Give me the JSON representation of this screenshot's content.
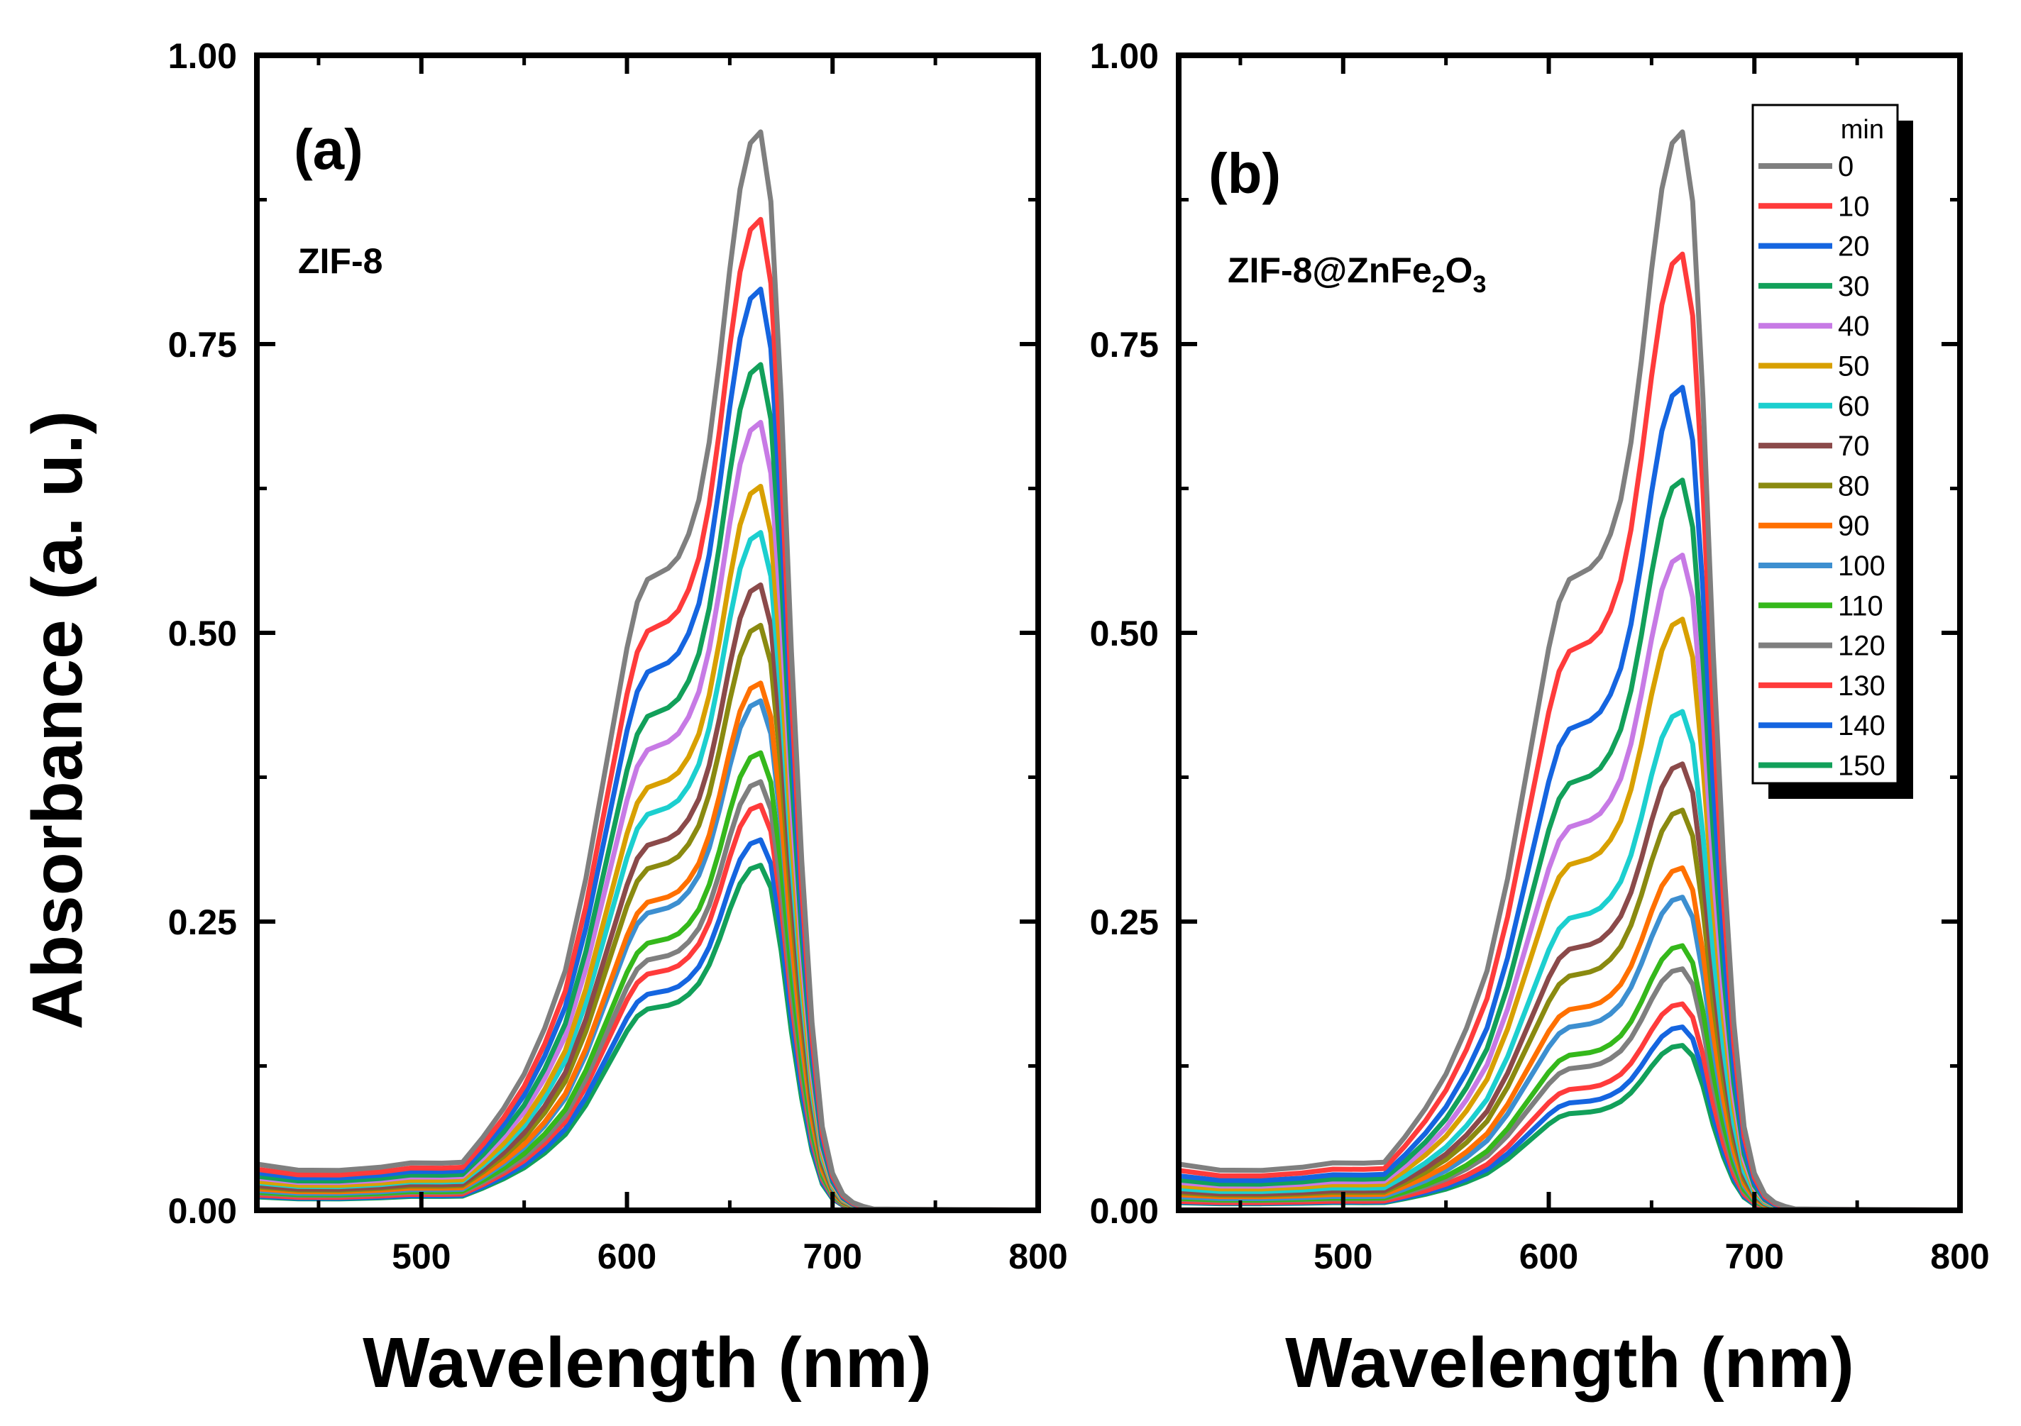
{
  "figure": {
    "ylabel": "Absorbance (a. u.)",
    "xlabel": "Wavelength (nm)"
  },
  "legend": {
    "title": "min",
    "entries": [
      "0",
      "10",
      "20",
      "30",
      "40",
      "50",
      "60",
      "70",
      "80",
      "90",
      "100",
      "110",
      "120",
      "130",
      "140",
      "150"
    ],
    "colors": [
      "#7f7f7f",
      "#ff3b3b",
      "#1565e0",
      "#12a05a",
      "#c77ae5",
      "#d8a000",
      "#1ccfcf",
      "#8b4a4a",
      "#8a8a10",
      "#ff7000",
      "#3d8fd0",
      "#35b81b",
      "#7f7f7f",
      "#ff3b3b",
      "#1565e0",
      "#12a05a"
    ]
  },
  "chart_data": [
    {
      "type": "line",
      "panel": "(a)",
      "sample": "ZIF-8",
      "xlabel": "Wavelength (nm)",
      "ylabel": "Absorbance (a. u.)",
      "xlim": [
        420,
        800
      ],
      "ylim": [
        0,
        1.0
      ],
      "xticks": [
        "500",
        "600",
        "700",
        "800"
      ],
      "yticks": [
        "0.00",
        "0.25",
        "0.50",
        "0.75",
        "1.00"
      ],
      "x": [
        420,
        440,
        460,
        480,
        495,
        510,
        520,
        530,
        540,
        550,
        560,
        570,
        580,
        590,
        600,
        605,
        610,
        615,
        620,
        625,
        630,
        635,
        640,
        645,
        650,
        655,
        660,
        665,
        670,
        675,
        680,
        685,
        690,
        695,
        700,
        705,
        710,
        715,
        720,
        740,
        760,
        780,
        800
      ],
      "series_shape": [
        0.03,
        0.025,
        0.025,
        0.028,
        0.032,
        0.032,
        0.033,
        0.055,
        0.08,
        0.11,
        0.15,
        0.2,
        0.28,
        0.38,
        0.48,
        0.52,
        0.54,
        0.545,
        0.55,
        0.56,
        0.58,
        0.61,
        0.66,
        0.73,
        0.81,
        0.88,
        0.92,
        0.93,
        0.87,
        0.7,
        0.48,
        0.3,
        0.16,
        0.07,
        0.03,
        0.012,
        0.005,
        0.002,
        0.0,
        0.0,
        0.0,
        0.0,
        0.0
      ],
      "shape_note": "each series = its peak value times the 0-min shape (which peaks at 0.93 near 665 nm), plus a small baseline",
      "series": [
        {
          "name": "0",
          "peak": 0.93,
          "baseline": 0.01
        },
        {
          "name": "10",
          "peak": 0.855,
          "baseline": 0.008
        },
        {
          "name": "20",
          "peak": 0.795,
          "baseline": 0.007
        },
        {
          "name": "30",
          "peak": 0.73,
          "baseline": 0.006
        },
        {
          "name": "40",
          "peak": 0.68,
          "baseline": 0.006
        },
        {
          "name": "50",
          "peak": 0.625,
          "baseline": 0.005
        },
        {
          "name": "60",
          "peak": 0.585,
          "baseline": 0.005
        },
        {
          "name": "70",
          "peak": 0.54,
          "baseline": 0.004
        },
        {
          "name": "80",
          "peak": 0.505,
          "baseline": 0.004
        },
        {
          "name": "90",
          "peak": 0.455,
          "baseline": 0.004
        },
        {
          "name": "100",
          "peak": 0.44,
          "baseline": 0.003
        },
        {
          "name": "110",
          "peak": 0.395,
          "baseline": 0.003
        },
        {
          "name": "120",
          "peak": 0.37,
          "baseline": 0.003
        },
        {
          "name": "130",
          "peak": 0.35,
          "baseline": 0.002
        },
        {
          "name": "140",
          "peak": 0.32,
          "baseline": 0.002
        },
        {
          "name": "150",
          "peak": 0.298,
          "baseline": 0.002
        }
      ]
    },
    {
      "type": "line",
      "panel": "(b)",
      "sample": "ZIF-8@ZnFe",
      "sample_sub1": "2",
      "sample_mid": "O",
      "sample_sub2": "3",
      "xlabel": "Wavelength (nm)",
      "ylabel": "Absorbance (a. u.)",
      "xlim": [
        420,
        800
      ],
      "ylim": [
        0,
        1.0
      ],
      "xticks": [
        "500",
        "600",
        "700",
        "800"
      ],
      "yticks": [
        "0.00",
        "0.25",
        "0.50",
        "0.75",
        "1.00"
      ],
      "x": [
        420,
        440,
        460,
        480,
        495,
        510,
        520,
        530,
        540,
        550,
        560,
        570,
        580,
        590,
        600,
        605,
        610,
        615,
        620,
        625,
        630,
        635,
        640,
        645,
        650,
        655,
        660,
        665,
        670,
        675,
        680,
        685,
        690,
        695,
        700,
        705,
        710,
        715,
        720,
        740,
        760,
        780,
        800
      ],
      "series_shape": [
        0.03,
        0.025,
        0.025,
        0.028,
        0.032,
        0.032,
        0.033,
        0.055,
        0.08,
        0.11,
        0.15,
        0.2,
        0.28,
        0.38,
        0.48,
        0.52,
        0.54,
        0.545,
        0.55,
        0.56,
        0.58,
        0.61,
        0.66,
        0.73,
        0.81,
        0.88,
        0.92,
        0.93,
        0.87,
        0.7,
        0.48,
        0.3,
        0.16,
        0.07,
        0.03,
        0.012,
        0.005,
        0.002,
        0.0,
        0.0,
        0.0,
        0.0,
        0.0
      ],
      "shape_note": "each series = its peak value times the 0-min shape (which peaks at 0.93 near 665 nm), plus a small baseline",
      "series": [
        {
          "name": "0",
          "peak": 0.93,
          "baseline": 0.01
        },
        {
          "name": "10",
          "peak": 0.825,
          "baseline": 0.008
        },
        {
          "name": "20",
          "peak": 0.71,
          "baseline": 0.007
        },
        {
          "name": "30",
          "peak": 0.63,
          "baseline": 0.006
        },
        {
          "name": "40",
          "peak": 0.565,
          "baseline": 0.006
        },
        {
          "name": "50",
          "peak": 0.51,
          "baseline": 0.005
        },
        {
          "name": "60",
          "peak": 0.43,
          "baseline": 0.005
        },
        {
          "name": "70",
          "peak": 0.385,
          "baseline": 0.004
        },
        {
          "name": "80",
          "peak": 0.345,
          "baseline": 0.004
        },
        {
          "name": "90",
          "peak": 0.295,
          "baseline": 0.004
        },
        {
          "name": "100",
          "peak": 0.27,
          "baseline": 0.003
        },
        {
          "name": "110",
          "peak": 0.228,
          "baseline": 0.003
        },
        {
          "name": "120",
          "peak": 0.208,
          "baseline": 0.003
        },
        {
          "name": "130",
          "peak": 0.178,
          "baseline": 0.002
        },
        {
          "name": "140",
          "peak": 0.158,
          "baseline": 0.002
        },
        {
          "name": "150",
          "peak": 0.142,
          "baseline": 0.002
        }
      ]
    }
  ]
}
